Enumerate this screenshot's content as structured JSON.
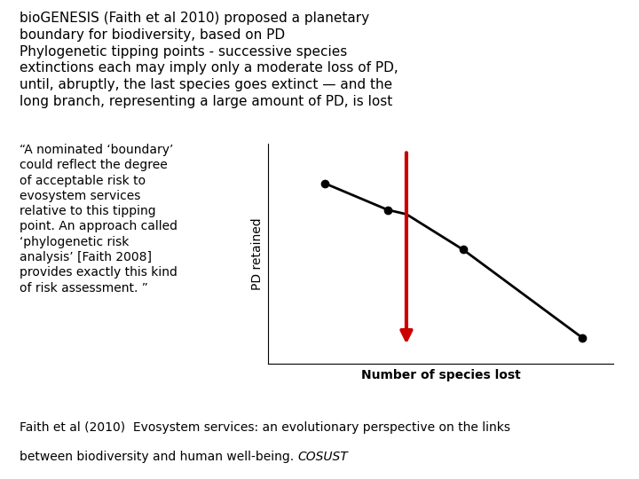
{
  "chart_data": {
    "type": "line",
    "title": "bioGENESIS (Faith et al 2010) proposed a planetary\nboundary for biodiversity, based on PD\nPhylogenetic tipping points - successive species\nextinctions each may imply only a moderate loss of PD,\nuntil, abruptly, the last species goes extinct — and the\nlong branch, representing a large amount of PD, is lost",
    "xlabel": "Number of species lost",
    "ylabel": "PD retained",
    "series": [
      {
        "type": "line",
        "color": "#000000",
        "x": [
          0.18,
          0.38,
          0.44,
          0.62,
          1.0
        ],
        "values": [
          0.82,
          0.7,
          0.68,
          0.52,
          0.12
        ]
      },
      {
        "type": "scatter",
        "color": "#000000",
        "x": [
          0.18,
          0.38,
          0.62,
          1.0
        ],
        "values": [
          0.82,
          0.7,
          0.52,
          0.12
        ]
      }
    ],
    "arrows": [
      {
        "x": 0.44,
        "y_from": 0.97,
        "y_to": 0.08,
        "color": "#cc0000"
      }
    ],
    "annotations": [
      "“A nominated ‘boundary’\ncould reflect the degree\nof acceptable risk to\nevosystem services\nrelative to this tipping\npoint. An approach called\n‘phylogenetic risk\nanalysis’ [Faith 2008]\nprovides exactly this kind\nof risk assessment. ”",
      "Faith et al (2010)  Evosystem services: an evolutionary perspective on the links",
      "between biodiversity and human well-being. ",
      "COSUST"
    ],
    "xlim": [
      0.0,
      1.1
    ],
    "ylim": [
      0.0,
      1.0
    ],
    "xticks": [],
    "yticks": [],
    "tick_labels": false,
    "grid": false
  }
}
